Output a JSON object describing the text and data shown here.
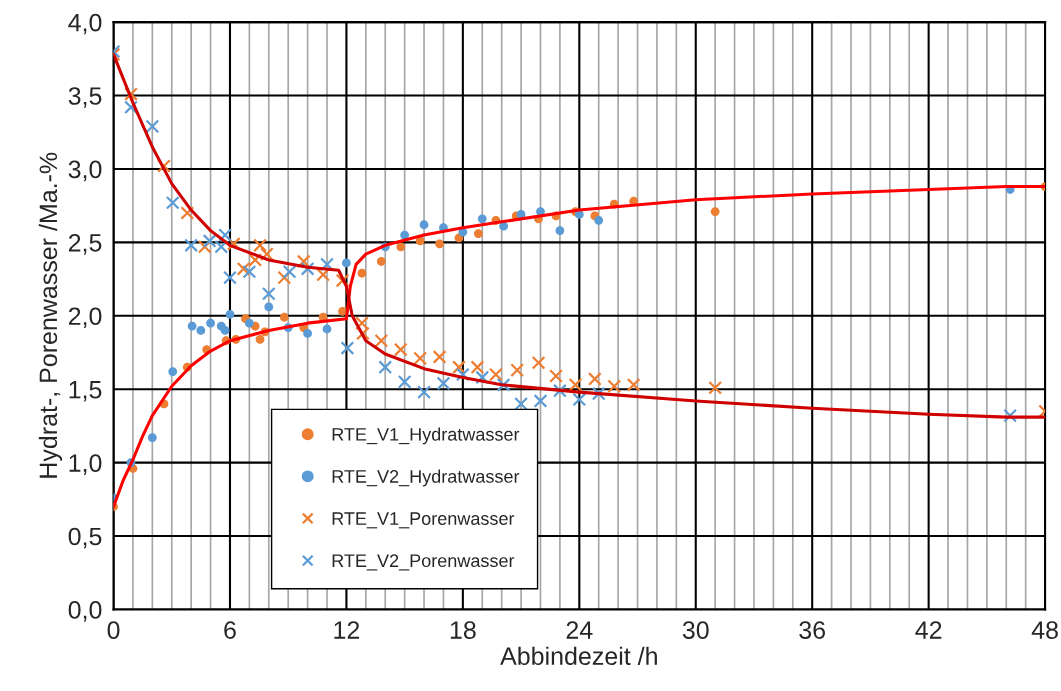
{
  "chart_data": {
    "type": "scatter",
    "xlabel": "Abbindezeit /h",
    "ylabel": "Hydrat-, Porenwasser /Ma.-%",
    "xlim": [
      0,
      48
    ],
    "xticks": [
      0,
      6,
      12,
      18,
      24,
      30,
      36,
      42,
      48
    ],
    "ylim": [
      0,
      4
    ],
    "yticks": [
      {
        "value": 0,
        "label": "0,0"
      },
      {
        "value": 0.5,
        "label": "0,5"
      },
      {
        "value": 1,
        "label": "1,0"
      },
      {
        "value": 1.5,
        "label": "1,5"
      },
      {
        "value": 2,
        "label": "2,0"
      },
      {
        "value": 2.5,
        "label": "2,5"
      },
      {
        "value": 3,
        "label": "3,0"
      },
      {
        "value": 3.5,
        "label": "3,5"
      },
      {
        "value": 4,
        "label": "4,0"
      }
    ],
    "grid": true,
    "legend": "bottom left",
    "series": [
      {
        "name": "RTE_V1_Hydratwasser",
        "marker": "circle",
        "color": "#ed7d31",
        "x": [
          0,
          1,
          2.6,
          3.8,
          4.8,
          5.8,
          6.3,
          6.8,
          7.3,
          7.55,
          7.8,
          8.8,
          9.8,
          10.8,
          11.8,
          12.8,
          13.8,
          14.8,
          15.8,
          16.8,
          17.8,
          18.8,
          19.7,
          20.75,
          21.9,
          22.8,
          23.8,
          24.8,
          25.8,
          26.8,
          31,
          48
        ],
        "values": [
          0.7,
          0.96,
          1.4,
          1.65,
          1.77,
          1.83,
          1.84,
          1.98,
          1.93,
          1.84,
          1.89,
          1.99,
          1.92,
          1.99,
          2.03,
          2.29,
          2.37,
          2.47,
          2.51,
          2.49,
          2.53,
          2.56,
          2.65,
          2.68,
          2.66,
          2.68,
          2.71,
          2.68,
          2.76,
          2.78,
          2.71,
          2.88
        ]
      },
      {
        "name": "RTE_V2_Hydratwasser",
        "marker": "circle",
        "color": "#5b9bd5",
        "x": [
          0,
          0.9,
          2,
          3.05,
          4.05,
          4.5,
          5,
          5.55,
          5.75,
          6,
          7,
          8,
          9,
          10,
          11,
          12,
          14,
          15,
          16,
          17,
          18,
          19,
          20.1,
          21,
          22,
          23,
          24,
          25,
          46.2
        ],
        "values": [
          0.76,
          1.0,
          1.17,
          1.62,
          1.93,
          1.9,
          1.95,
          1.93,
          1.9,
          2.01,
          1.95,
          2.06,
          1.92,
          1.88,
          1.91,
          2.36,
          2.47,
          2.55,
          2.62,
          2.6,
          2.57,
          2.66,
          2.61,
          2.69,
          2.71,
          2.58,
          2.69,
          2.65,
          2.86
        ]
      },
      {
        "name": "RTE_V1_Porenwasser",
        "marker": "cross",
        "color": "#ed7d31",
        "x": [
          0,
          0.9,
          2.6,
          3.8,
          4.7,
          6.2,
          6.7,
          7.3,
          7.55,
          7.9,
          8.8,
          9.8,
          10.8,
          11.8,
          12.8,
          12.85,
          13.8,
          14.8,
          15.8,
          16.8,
          17.8,
          18.75,
          19.7,
          20.8,
          21.9,
          22.8,
          23.8,
          24.8,
          25.8,
          26.8,
          31,
          48
        ],
        "values": [
          3.78,
          3.51,
          3.02,
          2.7,
          2.47,
          2.49,
          2.32,
          2.38,
          2.48,
          2.42,
          2.26,
          2.37,
          2.28,
          2.24,
          1.95,
          1.88,
          1.83,
          1.77,
          1.71,
          1.72,
          1.65,
          1.65,
          1.6,
          1.63,
          1.68,
          1.59,
          1.53,
          1.57,
          1.52,
          1.53,
          1.51,
          1.35
        ]
      },
      {
        "name": "RTE_V2_Porenwasser",
        "marker": "cross",
        "color": "#5b9bd5",
        "x": [
          0,
          0.9,
          2,
          3.05,
          4,
          4.95,
          5.55,
          5.75,
          6,
          7,
          8,
          9.07,
          10,
          11,
          12.05,
          14,
          15,
          16,
          17,
          18,
          19,
          20.1,
          21,
          22,
          23,
          24,
          25,
          46.2
        ],
        "values": [
          3.8,
          3.42,
          3.29,
          2.77,
          2.48,
          2.51,
          2.47,
          2.55,
          2.26,
          2.3,
          2.15,
          2.3,
          2.32,
          2.35,
          1.78,
          1.65,
          1.55,
          1.48,
          1.54,
          1.6,
          1.58,
          1.53,
          1.4,
          1.42,
          1.49,
          1.43,
          1.47,
          1.32
        ]
      },
      {
        "type": "line",
        "marker": "none",
        "line_style": "solid",
        "color": "#ff0000",
        "x": [
          0,
          0.5,
          1,
          1.5,
          2,
          3,
          4,
          5,
          6,
          8,
          10,
          12,
          12.2,
          12.5,
          13,
          14,
          16,
          18,
          20,
          24,
          30,
          36,
          42,
          46,
          48
        ],
        "values": [
          0.7,
          0.88,
          1.02,
          1.18,
          1.32,
          1.52,
          1.66,
          1.76,
          1.83,
          1.9,
          1.95,
          1.98,
          2.2,
          2.35,
          2.42,
          2.48,
          2.55,
          2.6,
          2.64,
          2.72,
          2.79,
          2.83,
          2.86,
          2.88,
          2.88
        ]
      },
      {
        "type": "line",
        "marker": "none",
        "line_style": "solid",
        "color": "#d00000",
        "x": [
          0,
          1,
          2,
          3,
          4,
          5,
          6,
          8,
          10,
          11.6,
          12,
          12.3,
          13,
          14,
          16,
          18,
          20,
          24,
          30,
          36,
          42,
          46,
          48
        ],
        "values": [
          3.78,
          3.45,
          3.15,
          2.9,
          2.72,
          2.58,
          2.48,
          2.38,
          2.33,
          2.31,
          2.2,
          2.0,
          1.83,
          1.74,
          1.64,
          1.58,
          1.53,
          1.48,
          1.42,
          1.37,
          1.33,
          1.31,
          1.31
        ]
      }
    ]
  }
}
